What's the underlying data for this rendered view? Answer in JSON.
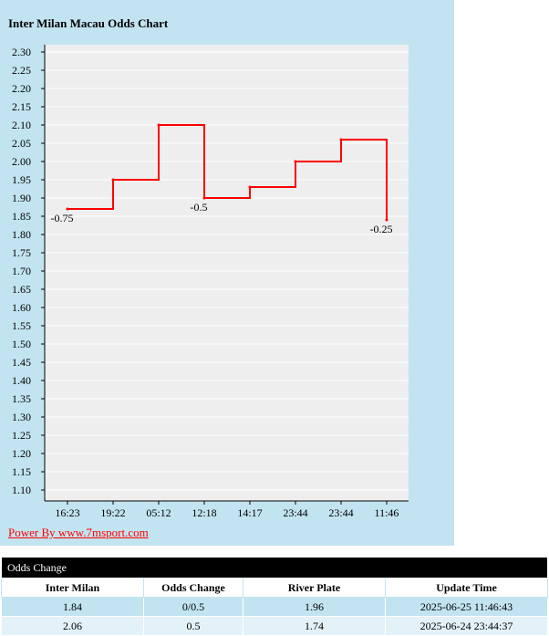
{
  "chart_data": {
    "type": "line",
    "title": "Inter Milan Macau Odds Chart",
    "x": [
      "16:23",
      "19:22",
      "05:12",
      "12:18",
      "14:17",
      "23:44",
      "23:44",
      "11:46"
    ],
    "values": [
      1.87,
      1.95,
      2.1,
      1.9,
      1.93,
      2.0,
      2.06,
      1.84
    ],
    "annotations": [
      {
        "index": 0,
        "text": "-0.75"
      },
      {
        "index": 3,
        "text": "-0.5"
      },
      {
        "index": 7,
        "text": "-0.25"
      }
    ],
    "ylim": [
      1.1,
      2.3
    ],
    "yticks": [
      "2.30",
      "2.25",
      "2.20",
      "2.15",
      "2.10",
      "2.05",
      "2.00",
      "1.95",
      "1.90",
      "1.85",
      "1.80",
      "1.75",
      "1.70",
      "1.65",
      "1.60",
      "1.55",
      "1.50",
      "1.45",
      "1.40",
      "1.35",
      "1.30",
      "1.25",
      "1.20",
      "1.15",
      "1.10"
    ],
    "grid": true,
    "line_color": "#ff0000",
    "plot_bg": "#eeeeee"
  },
  "footer": {
    "power_link": "Power By www.7msport.com"
  },
  "odds_change": {
    "title": "Odds Change",
    "columns": [
      "Inter Milan",
      "Odds Change",
      "River Plate",
      "Update Time"
    ],
    "rows": [
      [
        "1.84",
        "0/0.5",
        "1.96",
        "2025-06-25 11:46:43"
      ],
      [
        "2.06",
        "0.5",
        "1.74",
        "2025-06-24 23:44:37"
      ]
    ]
  },
  "colors": {
    "panel_bg": "#c2e4f0",
    "row_alt": "#e3f2f8",
    "link": "#ff0000"
  }
}
